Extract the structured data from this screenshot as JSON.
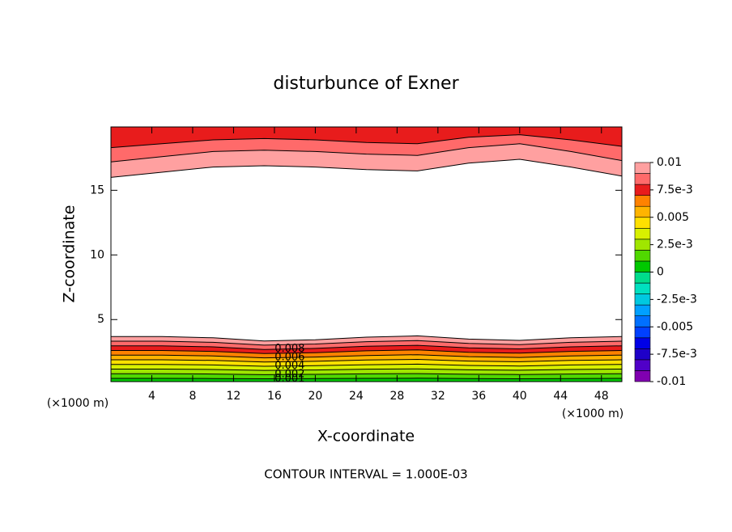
{
  "chart_data": {
    "type": "contour",
    "title": "disturbunce of Exner",
    "xlabel": "X-coordinate",
    "ylabel": "Z-coordinate",
    "x_unit": "(×1000 m)",
    "footer": "CONTOUR INTERVAL = 1.000E-03",
    "xlim": [
      0,
      50
    ],
    "ylim": [
      0.2,
      19.9
    ],
    "xticks": [
      4,
      8,
      12,
      16,
      20,
      24,
      28,
      32,
      36,
      40,
      44,
      48
    ],
    "yticks": [
      5,
      10,
      15
    ],
    "x": [
      0,
      5,
      10,
      15,
      20,
      25,
      30,
      35,
      40,
      45,
      50
    ],
    "lower_contours": [
      {
        "level": 0.001,
        "z": [
          0.45,
          0.45,
          0.44,
          0.42,
          0.43,
          0.45,
          0.46,
          0.43,
          0.42,
          0.44,
          0.45
        ]
      },
      {
        "level": 0.002,
        "z": [
          0.81,
          0.81,
          0.79,
          0.74,
          0.76,
          0.8,
          0.82,
          0.77,
          0.75,
          0.79,
          0.81
        ]
      },
      {
        "level": 0.003,
        "z": [
          1.17,
          1.17,
          1.14,
          1.07,
          1.1,
          1.16,
          1.19,
          1.11,
          1.08,
          1.14,
          1.17
        ]
      },
      {
        "level": 0.004,
        "z": [
          1.53,
          1.53,
          1.49,
          1.39,
          1.43,
          1.51,
          1.55,
          1.45,
          1.41,
          1.49,
          1.53
        ]
      },
      {
        "level": 0.005,
        "z": [
          1.89,
          1.89,
          1.84,
          1.72,
          1.77,
          1.87,
          1.92,
          1.79,
          1.74,
          1.84,
          1.89
        ]
      },
      {
        "level": 0.006,
        "z": [
          2.25,
          2.25,
          2.19,
          2.04,
          2.1,
          2.22,
          2.28,
          2.13,
          2.07,
          2.19,
          2.25
        ]
      },
      {
        "level": 0.007,
        "z": [
          2.61,
          2.61,
          2.54,
          2.37,
          2.44,
          2.58,
          2.65,
          2.47,
          2.4,
          2.54,
          2.61
        ]
      },
      {
        "level": 0.008,
        "z": [
          2.97,
          2.97,
          2.89,
          2.69,
          2.77,
          2.93,
          3.01,
          2.81,
          2.73,
          2.89,
          2.97
        ]
      },
      {
        "level": 0.009,
        "z": [
          3.33,
          3.33,
          3.24,
          3.02,
          3.11,
          3.29,
          3.38,
          3.15,
          3.06,
          3.24,
          3.33
        ]
      },
      {
        "level": 0.01,
        "z": [
          3.69,
          3.69,
          3.59,
          3.34,
          3.44,
          3.64,
          3.74,
          3.49,
          3.39,
          3.59,
          3.69
        ]
      }
    ],
    "upper_contours": [
      {
        "level": 0.01,
        "z": [
          16.0,
          16.4,
          16.8,
          16.9,
          16.8,
          16.6,
          16.5,
          17.1,
          17.4,
          16.8,
          16.1
        ]
      },
      {
        "level": 0.009,
        "z": [
          17.2,
          17.6,
          18.0,
          18.1,
          18.0,
          17.8,
          17.7,
          18.3,
          18.6,
          18.0,
          17.3
        ]
      },
      {
        "level": 0.008,
        "z": [
          18.3,
          18.6,
          18.9,
          19.0,
          18.9,
          18.7,
          18.6,
          19.1,
          19.3,
          18.9,
          18.4
        ]
      }
    ],
    "labeled_levels": [
      0.008,
      0.006,
      0.004,
      0.002,
      0.001
    ],
    "colorbar": {
      "levels": [
        -0.01,
        -0.009,
        -0.008,
        -0.007,
        -0.006,
        -0.005,
        -0.004,
        -0.003,
        -0.002,
        -0.001,
        0,
        0.001,
        0.002,
        0.003,
        0.004,
        0.005,
        0.006,
        0.007,
        0.008,
        0.009,
        0.01
      ],
      "colors": [
        "#8000b0",
        "#5000c8",
        "#1e00c8",
        "#0000e6",
        "#0040ff",
        "#0070ff",
        "#00a0ff",
        "#00c8e0",
        "#00e0c0",
        "#00dc8c",
        "#00c800",
        "#50d800",
        "#a0e600",
        "#d8f000",
        "#ffe000",
        "#ffb400",
        "#ff8200",
        "#e81c1c",
        "#ff6a6a",
        "#ffa0a0"
      ],
      "ticks": [
        -0.01,
        {
          "value": -0.0075,
          "label": "-7.5e-3"
        },
        -0.005,
        {
          "value": -0.0025,
          "label": "-2.5e-3"
        },
        0,
        {
          "value": 0.0025,
          "label": "2.5e-3"
        },
        0.005,
        {
          "value": 0.0075,
          "label": "7.5e-3"
        },
        0.01
      ]
    }
  }
}
